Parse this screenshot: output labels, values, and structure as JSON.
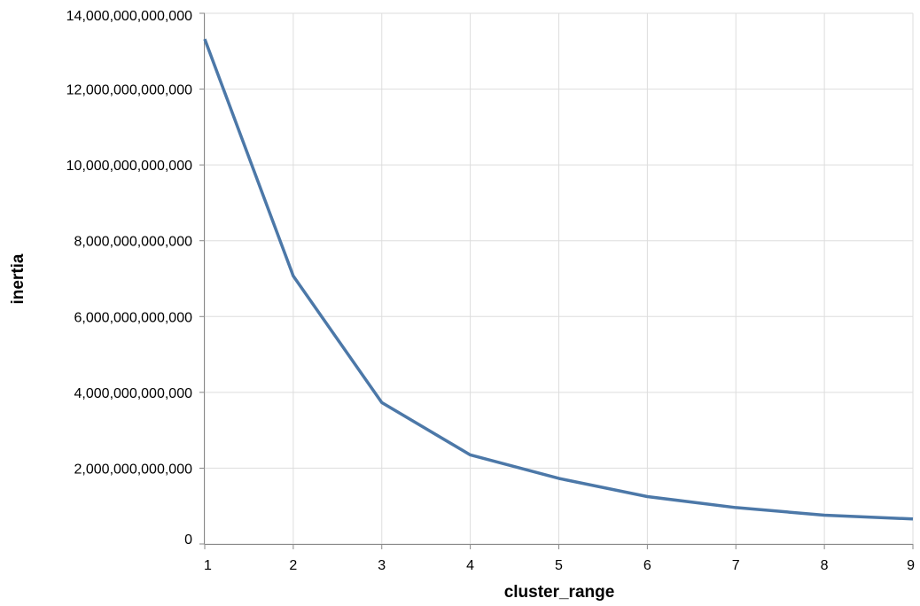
{
  "chart_data": {
    "type": "line",
    "title": "",
    "xlabel": "cluster_range",
    "ylabel": "inertia",
    "xlim": [
      1,
      9
    ],
    "ylim": [
      0,
      14000000000000
    ],
    "x_ticks": [
      1,
      2,
      3,
      4,
      5,
      6,
      7,
      8,
      9
    ],
    "y_ticks": [
      0,
      2000000000000,
      4000000000000,
      6000000000000,
      8000000000000,
      10000000000000,
      12000000000000,
      14000000000000
    ],
    "grid": true,
    "legend": "none",
    "series": [
      {
        "x": [
          1,
          2,
          3,
          4,
          5,
          6,
          7,
          8,
          9
        ],
        "values": [
          13320000000000,
          7070000000000,
          3730000000000,
          2350000000000,
          1730000000000,
          1250000000000,
          960000000000,
          760000000000,
          660000000000
        ],
        "color": "#4c78a8"
      }
    ]
  }
}
